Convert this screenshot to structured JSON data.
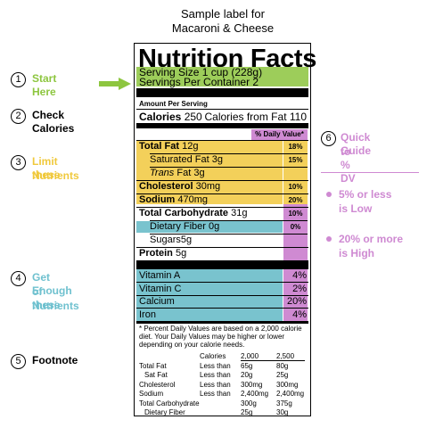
{
  "caption": [
    "Sample label for",
    "Macaroni & Cheese"
  ],
  "label": {
    "title": "Nutrition Facts",
    "serving_size": "Serving Size 1 cup (228g)",
    "servings_per_container": "Servings Per Container 2",
    "amount_per_serving": "Amount Per Serving",
    "calories_label": "Calories",
    "calories_value": "250",
    "calories_from_fat": "Calories from Fat 110",
    "dv_header": "% Daily Value*",
    "nutrients": [
      {
        "name": "Total Fat",
        "amount": "12g",
        "dv": "18%"
      },
      {
        "name": "Saturated Fat",
        "amount": "3g",
        "dv": "15%"
      },
      {
        "name": "Trans",
        "amount": "Fat 3g",
        "dv": ""
      },
      {
        "name": "Cholesterol",
        "amount": "30mg",
        "dv": "10%"
      },
      {
        "name": "Sodium",
        "amount": "470mg",
        "dv": "20%"
      },
      {
        "name": "Total Carbohydrate",
        "amount": "31g",
        "dv": "10%"
      },
      {
        "name": "Dietary Fiber",
        "amount": "0g",
        "dv": "0%"
      },
      {
        "name": "Sugars",
        "amount": "5g",
        "dv": ""
      },
      {
        "name": "Protein",
        "amount": "5g",
        "dv": ""
      }
    ],
    "vitamins": [
      {
        "name": "Vitamin A",
        "dv": "4%"
      },
      {
        "name": "Vitamin C",
        "dv": "2%"
      },
      {
        "name": "Calcium",
        "dv": "20%"
      },
      {
        "name": "Iron",
        "dv": "4%"
      }
    ],
    "footnote": "* Percent Daily Values are based on a 2,000 calorie diet. Your Daily Values may be higher or lower depending on your calorie needs.",
    "footnote_table": {
      "header": [
        "",
        "Calories",
        "2,000",
        "2,500"
      ],
      "rows": [
        [
          "Total Fat",
          "Less than",
          "65g",
          "80g"
        ],
        [
          "Sat Fat",
          "Less than",
          "20g",
          "25g"
        ],
        [
          "Cholesterol",
          "Less than",
          "300mg",
          "300mg"
        ],
        [
          "Sodium",
          "Less than",
          "2,400mg",
          "2,400mg"
        ],
        [
          "Total Carbohydrate",
          "",
          "300g",
          "375g"
        ],
        [
          "Dietary Fiber",
          "",
          "25g",
          "30g"
        ]
      ]
    }
  },
  "steps": [
    {
      "num": "1",
      "lines": [
        "Start Here"
      ],
      "color": "#8dc63f"
    },
    {
      "num": "2",
      "lines": [
        "Check Calories"
      ],
      "color": "#000000"
    },
    {
      "num": "3",
      "lines": [
        "Limit these",
        "Nutrients"
      ],
      "color": "#f0c93c"
    },
    {
      "num": "4",
      "lines": [
        "Get Enough",
        "of these",
        "Nutrients"
      ],
      "color": "#6fc1cf"
    },
    {
      "num": "5",
      "lines": [
        "Footnote"
      ],
      "color": "#000000"
    }
  ],
  "guide": {
    "num": "6",
    "title": [
      "Quick Guide",
      "to % DV"
    ],
    "bullets": [
      [
        "5% or less",
        "is Low"
      ],
      [
        "20% or more",
        "is High"
      ]
    ],
    "color": "#cf8ad2"
  }
}
